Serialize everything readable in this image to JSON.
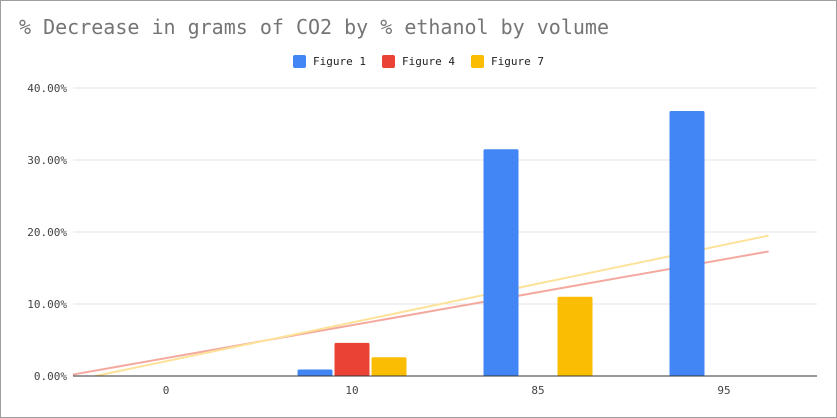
{
  "chart_data": {
    "type": "bar",
    "title": "% Decrease in grams of CO2 by % ethanol by volume",
    "xlabel": "",
    "ylabel": "",
    "categories": [
      "0",
      "10",
      "85",
      "95"
    ],
    "series": [
      {
        "name": "Figure 1",
        "color": "#4285f4",
        "values": [
          0,
          0.9,
          31.5,
          36.8
        ]
      },
      {
        "name": "Figure 4",
        "color": "#ea4335",
        "values": [
          0,
          4.6,
          null,
          null
        ]
      },
      {
        "name": "Figure 7",
        "color": "#fbbc04",
        "values": [
          0,
          2.6,
          11.0,
          null
        ]
      }
    ],
    "trendlines": [
      {
        "series": "Figure 4",
        "color": "#f4a99f",
        "start": [
          0,
          0.2
        ],
        "end": [
          3.74,
          17.3
        ]
      },
      {
        "series": "Figure 7",
        "color": "#fde29a",
        "start": [
          0.12,
          0
        ],
        "end": [
          3.74,
          19.5
        ]
      }
    ],
    "ylim": [
      0,
      40
    ],
    "yticks": [
      0,
      10,
      20,
      30,
      40
    ],
    "ytick_labels": [
      "0.00%",
      "10.00%",
      "20.00%",
      "30.00%",
      "40.00%"
    ],
    "grid": true,
    "legend_position": "top"
  }
}
